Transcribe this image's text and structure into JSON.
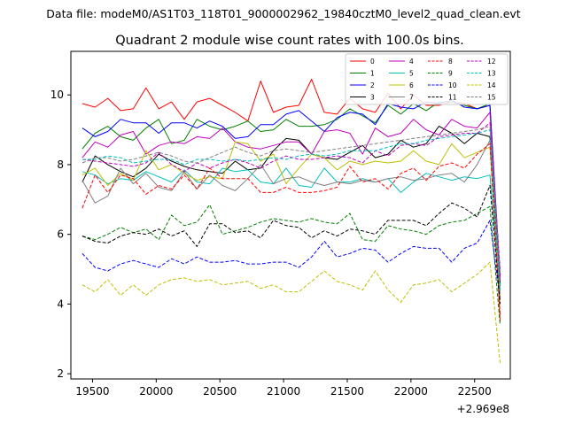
{
  "chart_data": {
    "type": "line",
    "suptitle": "Data file: modeM0/AS1T03_118T01_9000002962_19840cztM0_level2_quad_clean.evt",
    "title": "Quadrant 2 module wise count rates with 100.0s bins.",
    "xlabel": "",
    "ylabel": "",
    "x_offset_label": "+2.969e8",
    "xlim": [
      19330,
      22780
    ],
    "ylim": [
      1.85,
      11.25
    ],
    "xticks": [
      19500,
      20000,
      20500,
      21000,
      21500,
      22000,
      22500
    ],
    "yticks": [
      2,
      4,
      6,
      8,
      10
    ],
    "grid": false,
    "legend_location": "top-right",
    "x": [
      19420,
      19520,
      19620,
      19720,
      19820,
      19920,
      20020,
      20120,
      20220,
      20320,
      20420,
      20520,
      20620,
      20720,
      20820,
      20920,
      21020,
      21120,
      21220,
      21320,
      21420,
      21520,
      21620,
      21720,
      21820,
      21920,
      22020,
      22120,
      22220,
      22320,
      22420,
      22520,
      22620,
      22700
    ],
    "series": [
      {
        "name": "0",
        "color": "#ff0000",
        "style": "solid",
        "values": [
          9.75,
          9.65,
          9.9,
          9.55,
          9.6,
          10.2,
          9.6,
          9.8,
          9.3,
          9.8,
          9.9,
          9.7,
          9.5,
          9.25,
          10.4,
          9.5,
          9.65,
          9.7,
          10.45,
          9.5,
          9.45,
          9.9,
          9.6,
          9.5,
          10.05,
          9.6,
          10.0,
          9.7,
          9.7,
          9.8,
          9.75,
          9.6,
          9.7,
          3.5
        ]
      },
      {
        "name": "1",
        "color": "#008000",
        "style": "solid",
        "values": [
          8.45,
          8.9,
          9.1,
          8.8,
          8.7,
          9.05,
          9.3,
          8.6,
          8.7,
          9.3,
          9.1,
          9.0,
          9.1,
          9.25,
          8.95,
          9.0,
          9.3,
          9.1,
          9.1,
          9.15,
          9.3,
          9.6,
          9.4,
          9.2,
          9.7,
          9.45,
          9.75,
          9.55,
          9.8,
          9.8,
          9.7,
          9.6,
          9.75,
          4.5
        ]
      },
      {
        "name": "2",
        "color": "#0000ff",
        "style": "solid",
        "values": [
          9.05,
          8.8,
          8.95,
          9.3,
          9.2,
          9.2,
          8.9,
          9.2,
          9.2,
          9.05,
          9.25,
          9.1,
          8.75,
          8.8,
          9.15,
          9.15,
          9.45,
          9.55,
          9.25,
          8.95,
          9.35,
          9.5,
          9.45,
          9.15,
          9.75,
          9.65,
          9.6,
          9.8,
          9.75,
          9.85,
          9.65,
          9.6,
          9.7,
          4.8
        ]
      },
      {
        "name": "3",
        "color": "#000000",
        "style": "solid",
        "values": [
          7.5,
          8.25,
          8.0,
          7.8,
          7.65,
          7.9,
          8.3,
          8.1,
          7.95,
          7.85,
          7.8,
          7.75,
          8.1,
          7.85,
          7.9,
          8.4,
          8.75,
          8.7,
          8.3,
          8.2,
          8.15,
          8.35,
          8.55,
          8.2,
          8.3,
          8.7,
          8.5,
          8.6,
          9.1,
          8.9,
          8.6,
          8.9,
          8.8,
          4.6
        ]
      },
      {
        "name": "4",
        "color": "#bf00bf",
        "style": "solid",
        "values": [
          8.2,
          8.65,
          8.5,
          8.85,
          8.95,
          8.3,
          8.55,
          8.65,
          8.6,
          8.8,
          8.75,
          9.05,
          8.65,
          8.5,
          8.45,
          8.55,
          8.65,
          8.65,
          8.3,
          8.95,
          9.0,
          8.9,
          8.3,
          9.05,
          8.8,
          8.9,
          9.3,
          9.0,
          8.85,
          9.3,
          9.1,
          9.05,
          9.5,
          4.7
        ]
      },
      {
        "name": "5",
        "color": "#00bfbf",
        "style": "solid",
        "values": [
          7.8,
          7.7,
          7.45,
          7.6,
          7.55,
          7.8,
          7.65,
          7.5,
          7.85,
          7.5,
          7.45,
          7.9,
          7.8,
          7.85,
          7.5,
          7.45,
          7.9,
          7.4,
          7.35,
          7.9,
          7.5,
          7.5,
          7.6,
          7.5,
          7.6,
          7.2,
          7.5,
          7.75,
          7.65,
          7.55,
          7.65,
          7.6,
          7.7,
          4.2
        ]
      },
      {
        "name": "6",
        "color": "#bfbf00",
        "style": "solid",
        "values": [
          7.7,
          7.9,
          7.4,
          7.75,
          7.55,
          8.4,
          7.85,
          8.0,
          7.75,
          7.55,
          7.65,
          7.6,
          8.65,
          8.6,
          8.1,
          8.3,
          7.45,
          7.9,
          8.3,
          8.2,
          7.85,
          8.1,
          8.0,
          8.1,
          8.05,
          8.1,
          8.4,
          8.1,
          8.0,
          8.6,
          8.2,
          8.35,
          8.5,
          4.1
        ]
      },
      {
        "name": "7",
        "color": "#808080",
        "style": "solid",
        "values": [
          7.55,
          6.9,
          7.1,
          7.9,
          7.45,
          7.75,
          7.35,
          7.25,
          7.8,
          7.3,
          7.7,
          7.4,
          7.25,
          7.6,
          8.0,
          7.45,
          7.6,
          7.65,
          7.5,
          7.4,
          7.5,
          7.45,
          7.55,
          7.5,
          7.6,
          7.65,
          7.55,
          7.6,
          7.7,
          7.75,
          7.5,
          8.0,
          8.7,
          4.3
        ]
      },
      {
        "name": "8",
        "color": "#ff0000",
        "style": "dashed",
        "values": [
          6.75,
          7.7,
          7.2,
          7.7,
          7.6,
          7.15,
          7.4,
          7.3,
          7.7,
          7.3,
          7.9,
          7.6,
          7.6,
          7.6,
          7.2,
          7.2,
          7.35,
          7.2,
          7.2,
          7.25,
          7.35,
          7.95,
          7.5,
          7.6,
          7.3,
          7.75,
          7.9,
          7.55,
          7.95,
          8.05,
          7.9,
          8.3,
          8.6,
          3.7
        ]
      },
      {
        "name": "9",
        "color": "#008000",
        "style": "dashed",
        "values": [
          5.95,
          5.85,
          6.0,
          6.2,
          6.05,
          6.15,
          5.85,
          6.55,
          6.25,
          6.35,
          6.85,
          6.0,
          6.1,
          6.2,
          6.35,
          6.45,
          6.4,
          6.35,
          6.45,
          6.35,
          6.3,
          6.6,
          5.85,
          5.8,
          6.25,
          6.15,
          6.1,
          6.0,
          6.25,
          6.35,
          6.4,
          6.6,
          6.8,
          3.4
        ]
      },
      {
        "name": "10",
        "color": "#0000ff",
        "style": "dashed",
        "values": [
          5.45,
          5.05,
          4.95,
          5.15,
          5.25,
          5.15,
          5.05,
          5.3,
          5.15,
          5.35,
          5.2,
          5.2,
          5.25,
          5.15,
          5.15,
          5.2,
          5.2,
          5.05,
          5.35,
          5.8,
          5.35,
          5.45,
          5.6,
          5.55,
          5.2,
          5.45,
          5.65,
          5.6,
          5.6,
          5.2,
          5.6,
          5.75,
          6.4,
          4.1
        ]
      },
      {
        "name": "11",
        "color": "#000000",
        "style": "dashed",
        "values": [
          5.95,
          5.8,
          5.75,
          5.95,
          6.05,
          6.0,
          6.15,
          5.95,
          6.1,
          5.65,
          6.3,
          6.3,
          6.05,
          6.1,
          5.9,
          6.4,
          6.25,
          6.2,
          5.9,
          6.1,
          5.95,
          6.15,
          6.1,
          6.0,
          6.4,
          6.4,
          6.4,
          6.25,
          6.6,
          6.9,
          6.75,
          6.5,
          7.4,
          4.0
        ]
      },
      {
        "name": "12",
        "color": "#bf00bf",
        "style": "dashed",
        "values": [
          8.15,
          8.1,
          8.05,
          8.0,
          7.95,
          8.05,
          8.35,
          8.0,
          7.8,
          8.05,
          7.9,
          8.05,
          8.15,
          8.05,
          7.9,
          8.1,
          8.25,
          8.15,
          8.15,
          8.2,
          8.25,
          8.2,
          8.05,
          8.4,
          8.25,
          8.55,
          8.6,
          8.55,
          8.8,
          8.85,
          8.9,
          8.9,
          9.2,
          5.0
        ]
      },
      {
        "name": "13",
        "color": "#00bfbf",
        "style": "dashed",
        "values": [
          8.15,
          8.15,
          8.25,
          8.2,
          8.05,
          8.1,
          8.15,
          8.15,
          8.0,
          8.15,
          8.15,
          8.1,
          8.15,
          8.1,
          8.15,
          8.2,
          8.15,
          8.25,
          8.3,
          8.25,
          8.3,
          8.4,
          8.4,
          8.4,
          8.5,
          8.6,
          8.6,
          8.7,
          8.75,
          8.8,
          8.85,
          8.9,
          9.0,
          4.4
        ]
      },
      {
        "name": "14",
        "color": "#bfbf00",
        "style": "dashed",
        "values": [
          4.55,
          4.35,
          4.7,
          4.25,
          4.55,
          4.25,
          4.55,
          4.7,
          4.75,
          4.65,
          4.7,
          4.55,
          4.6,
          4.65,
          4.45,
          4.55,
          4.35,
          4.35,
          4.65,
          4.95,
          4.65,
          4.55,
          4.4,
          4.95,
          4.4,
          4.05,
          4.55,
          4.6,
          4.7,
          4.35,
          4.6,
          4.85,
          5.2,
          2.3
        ]
      },
      {
        "name": "15",
        "color": "#808080",
        "style": "dashed",
        "values": [
          8.05,
          8.2,
          8.2,
          8.1,
          8.15,
          8.25,
          8.35,
          8.25,
          8.1,
          8.05,
          8.2,
          8.35,
          8.5,
          8.35,
          8.25,
          8.4,
          8.45,
          8.4,
          8.35,
          8.4,
          8.45,
          8.5,
          8.55,
          8.6,
          8.65,
          8.7,
          8.75,
          8.8,
          8.85,
          8.9,
          8.95,
          9.0,
          9.1,
          4.9
        ]
      }
    ]
  }
}
